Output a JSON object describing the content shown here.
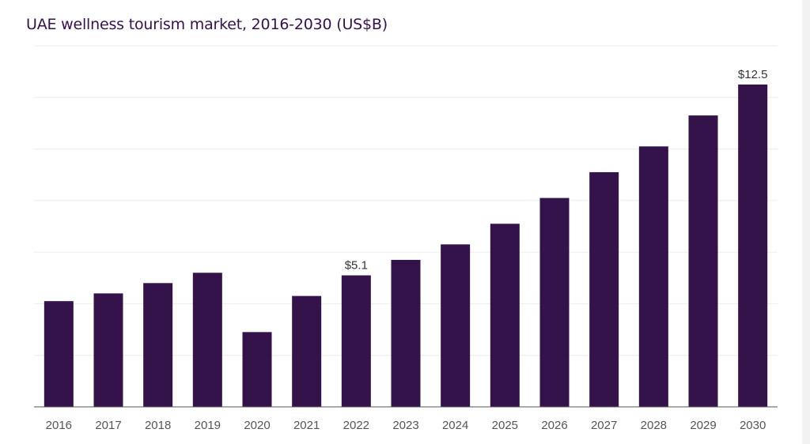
{
  "chart_data": {
    "type": "bar",
    "title": "UAE wellness tourism market, 2016-2030 (US$B)",
    "categories": [
      "2016",
      "2017",
      "2018",
      "2019",
      "2020",
      "2021",
      "2022",
      "2023",
      "2024",
      "2025",
      "2026",
      "2027",
      "2028",
      "2029",
      "2030"
    ],
    "values": [
      4.1,
      4.4,
      4.8,
      5.2,
      2.9,
      4.3,
      5.1,
      5.7,
      6.3,
      7.1,
      8.1,
      9.1,
      10.1,
      11.3,
      12.5
    ],
    "data_labels": [
      {
        "category": "2022",
        "text": "$5.1"
      },
      {
        "category": "2030",
        "text": "$12.5"
      }
    ],
    "xlabel": "",
    "ylabel": "",
    "ylim": [
      0,
      14
    ],
    "grid": true,
    "bar_color": "#34124a"
  }
}
